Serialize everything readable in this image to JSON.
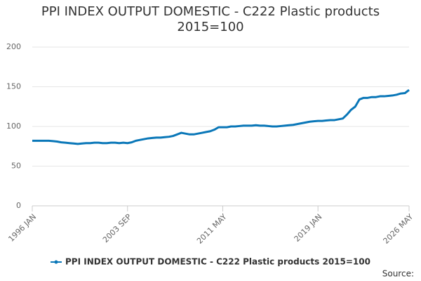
{
  "chart_data": {
    "type": "line",
    "title": "PPI INDEX OUTPUT DOMESTIC - C222 Plastic products 2015=100",
    "source": "Source:",
    "categories": [
      "1996 JAN",
      null,
      null,
      null,
      null,
      null,
      null,
      null,
      null,
      null,
      null,
      null,
      null,
      null,
      null,
      null,
      null,
      null,
      null,
      null,
      null,
      null,
      null,
      "2003 SEP",
      null,
      null,
      null,
      null,
      null,
      null,
      null,
      null,
      null,
      null,
      null,
      null,
      null,
      null,
      null,
      null,
      null,
      null,
      null,
      null,
      null,
      null,
      "2011 MAY",
      null,
      null,
      null,
      null,
      null,
      null,
      null,
      null,
      null,
      null,
      null,
      null,
      null,
      null,
      null,
      null,
      null,
      null,
      null,
      null,
      null,
      null,
      "2019 JAN",
      null,
      null,
      null,
      null,
      null,
      null,
      null,
      null,
      null,
      null,
      null,
      null,
      null,
      null,
      null,
      null,
      null,
      null,
      null,
      null,
      null,
      "2026 MAY"
    ],
    "series": [
      {
        "name": "PPI INDEX OUTPUT DOMESTIC - C222 Plastic products 2015=100",
        "color": "#0a77b8",
        "values": [
          82,
          82,
          82,
          82,
          82,
          81.5,
          81,
          80,
          79.5,
          79,
          78.5,
          78,
          78.5,
          79,
          79,
          79.5,
          79.5,
          79,
          79,
          79.5,
          79.5,
          79,
          79.5,
          79,
          80,
          82,
          83,
          84,
          85,
          85.5,
          86,
          86,
          86.5,
          87,
          88,
          90,
          92,
          91,
          90,
          90,
          91,
          92,
          93,
          94,
          96,
          99,
          99,
          99,
          100,
          100,
          100.5,
          101,
          101,
          101,
          101.5,
          101,
          101,
          100.5,
          100,
          100,
          100.5,
          101,
          101.5,
          102,
          103,
          104,
          105,
          106,
          106.5,
          107,
          107,
          107.5,
          108,
          108,
          109,
          110,
          115,
          121,
          125,
          134,
          136,
          136,
          137,
          137,
          138,
          138,
          138.5,
          139,
          140,
          141.5,
          142,
          146
        ]
      }
    ],
    "ylim": [
      0,
      200
    ],
    "yticks": [
      0,
      50,
      100,
      150,
      200
    ],
    "grid": true
  }
}
